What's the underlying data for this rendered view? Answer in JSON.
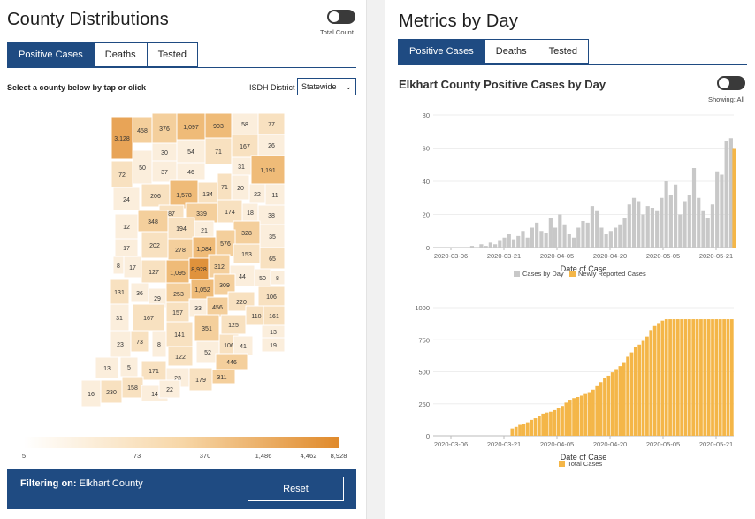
{
  "left": {
    "title": "County Distributions",
    "toggle_label": "Total Count",
    "tabs": [
      "Positive Cases",
      "Deaths",
      "Tested"
    ],
    "select_prompt": "Select a county below by tap or click",
    "district_label": "ISDH District",
    "district_value": "Statewide",
    "map_labels": [
      "3,128",
      "458",
      "376",
      "1,097",
      "903",
      "58",
      "77",
      "30",
      "54",
      "167",
      "26",
      "71",
      "31",
      "1,191",
      "72",
      "50",
      "37",
      "46",
      "206",
      "1,578",
      "134",
      "71",
      "20",
      "22",
      "11",
      "87",
      "24",
      "339",
      "174",
      "18",
      "38",
      "348",
      "194",
      "21",
      "12",
      "328",
      "17",
      "202",
      "278",
      "1,084",
      "576",
      "35",
      "153",
      "8",
      "17",
      "127",
      "1,095",
      "8,928",
      "312",
      "65",
      "44",
      "50",
      "8",
      "253",
      "1,052",
      "309",
      "131",
      "36",
      "106",
      "29",
      "157",
      "33",
      "456",
      "220",
      "31",
      "167",
      "110",
      "161",
      "125",
      "13",
      "141",
      "351",
      "19",
      "23",
      "73",
      "8",
      "106",
      "41",
      "52",
      "122",
      "13",
      "5",
      "171",
      "446",
      "311",
      "23",
      "179",
      "16",
      "230",
      "158",
      "14",
      "22"
    ],
    "legend_ticks": [
      "5",
      "73",
      "370",
      "1,486",
      "4,462",
      "8,928"
    ],
    "filter_prefix": "Filtering on:",
    "filter_value": "Elkhart County",
    "reset_label": "Reset"
  },
  "right": {
    "title": "Metrics by Day",
    "tabs": [
      "Positive Cases",
      "Deaths",
      "Tested"
    ],
    "subtitle": "Elkhart County Positive Cases by Day",
    "toggle_label": "Showing: All",
    "colors": {
      "gray": "#c8c8c8",
      "orange": "#f4b648",
      "navy": "#1f4b82"
    }
  },
  "chart_data": [
    {
      "type": "bar",
      "xlabel": "Date of Case",
      "ylabel": "",
      "ylim": [
        0,
        80
      ],
      "yticks": [
        "0",
        "20",
        "40",
        "60",
        "80"
      ],
      "xticks": [
        "2020-03-06",
        "2020-03-21",
        "2020-04-05",
        "2020-04-20",
        "2020-05-05",
        "2020-05-21"
      ],
      "start_date": "2020-03-06",
      "series": [
        {
          "name": "Cases by Day",
          "color": "#c8c8c8",
          "values": [
            0,
            0,
            0,
            0,
            0,
            0,
            0,
            0,
            0,
            0,
            0,
            0,
            0,
            0,
            0,
            0,
            1,
            0,
            0,
            0,
            2,
            0,
            1,
            0,
            3,
            0,
            2,
            0,
            4,
            0,
            6,
            0,
            8,
            0,
            5,
            0,
            7,
            0,
            10,
            0,
            6,
            0,
            12,
            0,
            15,
            0,
            10,
            0,
            9,
            0,
            18,
            0,
            12,
            0,
            20,
            0,
            14,
            0,
            8,
            0,
            6,
            0,
            12,
            0,
            16,
            0,
            15,
            0,
            25,
            0,
            22,
            0,
            12,
            0,
            8,
            0,
            10,
            0,
            12,
            0,
            14,
            0,
            18,
            0,
            26,
            0,
            30,
            0,
            28,
            0,
            20,
            0,
            25,
            0,
            24,
            0,
            22,
            0,
            30,
            0,
            40,
            0,
            32,
            0,
            38,
            0,
            20,
            0,
            28,
            0,
            32,
            0,
            48,
            0,
            30,
            0,
            22,
            0,
            18,
            0,
            26,
            0,
            46,
            0,
            44,
            0,
            64,
            0,
            66
          ]
        },
        {
          "name": "Newly Reported Cases",
          "color": "#f4b648",
          "values_last": 60
        }
      ]
    },
    {
      "type": "bar",
      "xlabel": "Date of Case",
      "ylim": [
        0,
        1000
      ],
      "yticks": [
        "0",
        "250",
        "500",
        "750",
        "1000"
      ],
      "xticks": [
        "2020-03-06",
        "2020-03-21",
        "2020-04-05",
        "2020-04-20",
        "2020-05-05",
        "2020-05-21"
      ],
      "series": [
        {
          "name": "Total Cases",
          "color": "#f4b648"
        }
      ]
    }
  ]
}
